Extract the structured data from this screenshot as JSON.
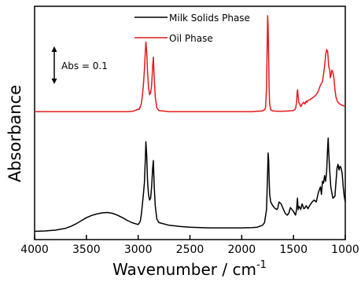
{
  "chart_data": {
    "type": "line",
    "xlabel": "Wavenumber / cm",
    "xlabel_superscript": "-1",
    "ylabel": "Absorbance",
    "xlim": [
      4000,
      1000
    ],
    "x_reversed": true,
    "xticks": [
      4000,
      3500,
      3000,
      2500,
      2000,
      1500,
      1000
    ],
    "ylim": [
      -0.02,
      0.6
    ],
    "yticks_shown": false,
    "grid": false,
    "legend_position": "top-center",
    "scale_bar": {
      "label": "Abs = 0.1",
      "value": 0.1
    },
    "series": [
      {
        "name": "Milk Solids Phase",
        "color": "#000000",
        "x": [
          4000,
          3900,
          3800,
          3700,
          3650,
          3600,
          3550,
          3500,
          3450,
          3400,
          3350,
          3300,
          3250,
          3200,
          3150,
          3100,
          3050,
          3000,
          2980,
          2970,
          2960,
          2950,
          2940,
          2930,
          2925,
          2918,
          2910,
          2900,
          2890,
          2880,
          2870,
          2860,
          2853,
          2845,
          2835,
          2820,
          2800,
          2700,
          2600,
          2500,
          2400,
          2300,
          2200,
          2100,
          2000,
          1900,
          1850,
          1800,
          1780,
          1760,
          1750,
          1745,
          1740,
          1735,
          1730,
          1720,
          1700,
          1680,
          1660,
          1650,
          1640,
          1620,
          1600,
          1580,
          1560,
          1545,
          1530,
          1500,
          1480,
          1470,
          1462,
          1455,
          1445,
          1430,
          1417,
          1400,
          1390,
          1377,
          1360,
          1340,
          1320,
          1300,
          1280,
          1260,
          1240,
          1230,
          1220,
          1210,
          1200,
          1190,
          1180,
          1170,
          1165,
          1160,
          1150,
          1140,
          1120,
          1100,
          1090,
          1080,
          1070,
          1060,
          1050,
          1040,
          1030,
          1020,
          1010,
          1000
        ],
        "y": [
          0.002,
          0.003,
          0.005,
          0.01,
          0.015,
          0.022,
          0.03,
          0.038,
          0.044,
          0.048,
          0.051,
          0.052,
          0.05,
          0.045,
          0.038,
          0.03,
          0.024,
          0.02,
          0.028,
          0.045,
          0.07,
          0.1,
          0.13,
          0.2,
          0.24,
          0.205,
          0.14,
          0.1,
          0.085,
          0.09,
          0.12,
          0.17,
          0.19,
          0.12,
          0.07,
          0.035,
          0.025,
          0.018,
          0.015,
          0.013,
          0.012,
          0.011,
          0.011,
          0.011,
          0.011,
          0.012,
          0.013,
          0.018,
          0.025,
          0.06,
          0.16,
          0.21,
          0.19,
          0.14,
          0.1,
          0.08,
          0.07,
          0.063,
          0.06,
          0.065,
          0.08,
          0.075,
          0.062,
          0.05,
          0.045,
          0.05,
          0.065,
          0.055,
          0.045,
          0.06,
          0.09,
          0.06,
          0.068,
          0.06,
          0.075,
          0.062,
          0.064,
          0.07,
          0.062,
          0.072,
          0.08,
          0.085,
          0.08,
          0.105,
          0.12,
          0.1,
          0.135,
          0.13,
          0.15,
          0.135,
          0.16,
          0.225,
          0.25,
          0.215,
          0.16,
          0.12,
          0.09,
          0.095,
          0.13,
          0.17,
          0.18,
          0.165,
          0.175,
          0.17,
          0.155,
          0.12,
          0.095,
          0.08
        ]
      },
      {
        "name": "Oil Phase",
        "color": "#e41a1c",
        "x": [
          4000,
          3800,
          3600,
          3400,
          3200,
          3100,
          3050,
          3010,
          3000,
          2990,
          2970,
          2960,
          2950,
          2940,
          2930,
          2925,
          2918,
          2910,
          2900,
          2890,
          2880,
          2870,
          2860,
          2853,
          2845,
          2835,
          2820,
          2800,
          2700,
          2600,
          2500,
          2400,
          2300,
          2200,
          2100,
          2000,
          1900,
          1850,
          1800,
          1780,
          1770,
          1760,
          1755,
          1750,
          1745,
          1740,
          1735,
          1730,
          1720,
          1700,
          1650,
          1600,
          1550,
          1500,
          1480,
          1470,
          1465,
          1460,
          1455,
          1450,
          1440,
          1430,
          1417,
          1400,
          1390,
          1377,
          1370,
          1360,
          1340,
          1320,
          1300,
          1280,
          1260,
          1240,
          1230,
          1220,
          1210,
          1200,
          1190,
          1180,
          1170,
          1165,
          1160,
          1150,
          1145,
          1140,
          1130,
          1120,
          1110,
          1100,
          1090,
          1080,
          1070,
          1060,
          1050,
          1040,
          1030,
          1020,
          1010,
          1000
        ],
        "y": [
          0.32,
          0.32,
          0.32,
          0.32,
          0.32,
          0.32,
          0.321,
          0.325,
          0.327,
          0.326,
          0.34,
          0.36,
          0.39,
          0.43,
          0.485,
          0.505,
          0.48,
          0.43,
          0.385,
          0.365,
          0.37,
          0.39,
          0.44,
          0.465,
          0.41,
          0.36,
          0.33,
          0.323,
          0.32,
          0.32,
          0.32,
          0.32,
          0.32,
          0.32,
          0.32,
          0.32,
          0.32,
          0.321,
          0.322,
          0.325,
          0.33,
          0.38,
          0.48,
          0.575,
          0.55,
          0.46,
          0.38,
          0.34,
          0.325,
          0.322,
          0.321,
          0.321,
          0.322,
          0.323,
          0.328,
          0.345,
          0.37,
          0.378,
          0.36,
          0.345,
          0.34,
          0.333,
          0.34,
          0.345,
          0.34,
          0.348,
          0.345,
          0.35,
          0.352,
          0.356,
          0.36,
          0.365,
          0.375,
          0.39,
          0.395,
          0.4,
          0.42,
          0.44,
          0.47,
          0.485,
          0.48,
          0.46,
          0.44,
          0.43,
          0.41,
          0.415,
          0.43,
          0.425,
          0.41,
          0.38,
          0.36,
          0.35,
          0.345,
          0.342,
          0.34,
          0.338,
          0.337,
          0.336,
          0.335,
          0.335
        ]
      }
    ]
  }
}
